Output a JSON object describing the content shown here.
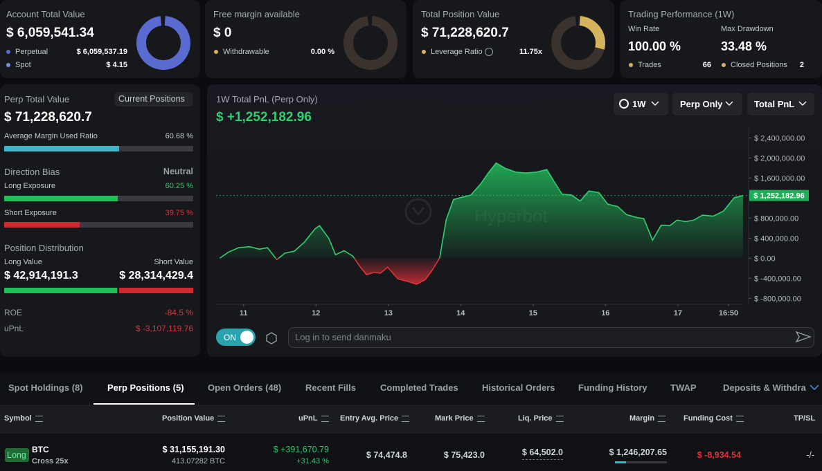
{
  "top_cards": {
    "account": {
      "title": "Account Total Value",
      "value": "$ 6,059,541.34",
      "perpetual_label": "Perpetual",
      "perpetual": "$ 6,059,537.19",
      "spot_label": "Spot",
      "spot": "$ 4.15"
    },
    "margin": {
      "title": "Free margin available",
      "value": "$ 0",
      "withdrawable_label": "Withdrawable",
      "withdrawable": "0.00 %"
    },
    "position": {
      "title": "Total Position Value",
      "value": "$ 71,228,620.7",
      "leverage_label": "Leverage Ratio",
      "leverage": "11.75x"
    },
    "performance": {
      "title": "Trading Performance (1W)",
      "win_rate_label": "Win Rate",
      "win_rate": "100.00 %",
      "drawdown_label": "Max Drawdown",
      "drawdown": "33.48 %",
      "trades_label": "Trades",
      "trades": "66",
      "closed_label": "Closed Positions",
      "closed": "2"
    }
  },
  "left_panel": {
    "perp_label": "Perp Total Value",
    "positions_button": "Current Positions",
    "perp_value": "$ 71,228,620.7",
    "margin_ratio_label": "Average Margin Used Ratio",
    "margin_ratio": "60.68 %",
    "direction": {
      "title": "Direction Bias",
      "bias": "Neutral",
      "long_label": "Long Exposure",
      "long": "60.25 %",
      "short_label": "Short Exposure",
      "short": "39.75 %"
    },
    "distribution": {
      "title": "Position Distribution",
      "long_label": "Long Value",
      "short_label": "Short Value",
      "long_value": "$ 42,914,191.3",
      "short_value": "$ 28,314,429.4"
    },
    "roe_label": "ROE",
    "roe": "-84.5 %",
    "upnl_label": "uPnL",
    "upnl": "$ -3,107,119.76"
  },
  "pnl_chart": {
    "type": "area",
    "title": "1W Total PnL (Perp Only)",
    "total": "$ +1,252,182.96",
    "controls": [
      "1W",
      "Perp Only",
      "Total PnL"
    ],
    "watermark": "Hyperbot",
    "x": [
      10.67,
      10.79,
      10.93,
      11.08,
      11.22,
      11.33,
      11.46,
      11.57,
      11.7,
      11.84,
      11.99,
      12.05,
      12.18,
      12.27,
      12.39,
      12.51,
      12.61,
      12.7,
      12.8,
      12.89,
      12.99,
      13.13,
      13.28,
      13.39,
      13.51,
      13.61,
      13.71,
      13.8,
      13.9,
      14.0,
      14.14,
      14.28,
      14.38,
      14.49,
      14.62,
      14.76,
      14.9,
      15.05,
      15.19,
      15.29,
      15.4,
      15.53,
      15.65,
      15.77,
      15.91,
      16.03,
      16.17,
      16.29,
      16.44,
      16.53,
      16.65,
      16.77,
      16.89,
      16.99,
      17.11,
      17.22,
      17.34,
      17.49,
      17.63,
      17.78,
      17.9
    ],
    "values": [
      0,
      120000,
      210000,
      230000,
      180000,
      210000,
      -30000,
      100000,
      140000,
      320000,
      590000,
      650000,
      390000,
      70000,
      150000,
      40000,
      -170000,
      -330000,
      -280000,
      -300000,
      -180000,
      -410000,
      -470000,
      -520000,
      -430000,
      -230000,
      10000,
      770000,
      1170000,
      1210000,
      1260000,
      1490000,
      1700000,
      1900000,
      1790000,
      1720000,
      1700000,
      1720000,
      1770000,
      1530000,
      1280000,
      1260000,
      1140000,
      1340000,
      1310000,
      1080000,
      1030000,
      870000,
      810000,
      790000,
      360000,
      660000,
      650000,
      760000,
      730000,
      760000,
      860000,
      840000,
      940000,
      1210000,
      1250000
    ],
    "xlim": [
      10.62,
      17.92
    ],
    "xticks": [
      11,
      12,
      13,
      14,
      15,
      16,
      17,
      {
        "value": 17.7,
        "label": "16:50"
      }
    ],
    "ylim": [
      -920000,
      2600000
    ],
    "yticks": [
      {
        "value": 2400000,
        "label": "$ 2,400,000.00"
      },
      {
        "value": 2000000,
        "label": "$ 2,000,000.00"
      },
      {
        "value": 1600000,
        "label": "$ 1,600,000.00"
      },
      {
        "value": 800000,
        "label": "$ 800,000.00"
      },
      {
        "value": 400000,
        "label": "$ 400,000.00"
      },
      {
        "value": 0,
        "label": "$ 0.00"
      },
      {
        "value": -400000,
        "label": "$ -400,000.00"
      },
      {
        "value": -800000,
        "label": "$ -800,000.00"
      }
    ],
    "current": 1252182.96,
    "current_label": "$ 1,252,182.96",
    "colors": {
      "positive": "#2fd072",
      "negative": "#e0323a"
    },
    "toggle": "ON",
    "input_placeholder": "Log in to send danmaku"
  },
  "tabs": {
    "items": [
      "Spot Holdings (8)",
      "Perp Positions (5)",
      "Open Orders (48)",
      "Recent Fills",
      "Completed Trades",
      "Historical Orders",
      "Funding History",
      "TWAP",
      "Deposits & Withdra"
    ],
    "active": 1
  },
  "table": {
    "headers": [
      "Symbol",
      "Position Value",
      "uPnL",
      "Entry Avg. Price",
      "Mark Price",
      "Liq. Price",
      "Margin",
      "Funding Cost",
      "TP/SL"
    ],
    "rows": [
      {
        "side": "Long",
        "symbol": "BTC",
        "margin_mode": "Cross 25x",
        "position_value": "$ 31,155,191.30",
        "size": "413.07282 BTC",
        "upnl": "$ +391,670.79",
        "upnl_pct": "+31.43 %",
        "entry": "$ 74,474.8",
        "mark": "$ 75,423.0",
        "liq": "$ 64,502.0",
        "margin": "$ 1,246,207.65",
        "funding": "$ -8,934.54",
        "tpsl": "-/-"
      }
    ]
  }
}
